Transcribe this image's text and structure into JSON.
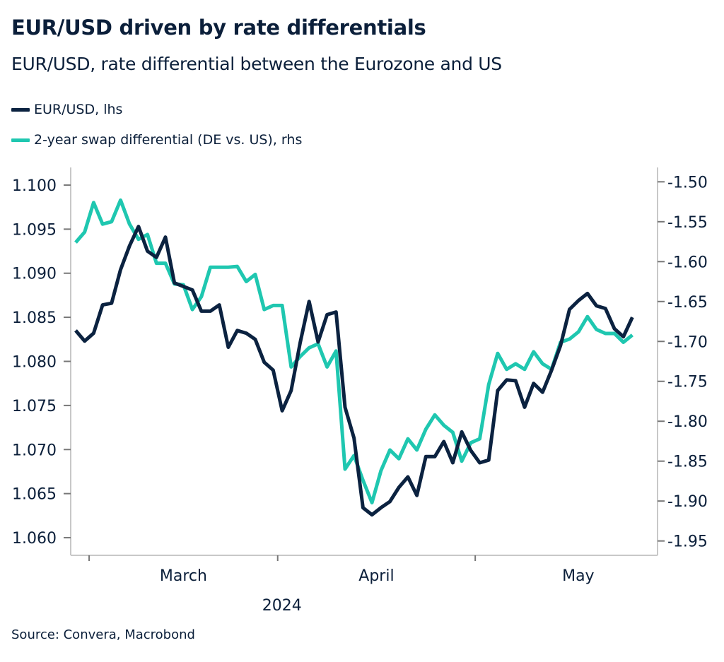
{
  "title": "EUR/USD driven by rate differentials",
  "subtitle": "EUR/USD, rate differential between the Eurozone and US",
  "source": "Source: Convera, Macrobond",
  "colors": {
    "eurusd": "#0b2240",
    "swap": "#1fc7b0",
    "axis": "#c8c8c8"
  },
  "chart_data": {
    "type": "line",
    "legend_placement": "top-left",
    "grid": false,
    "x_tick_labels": [
      "March",
      "April",
      "May"
    ],
    "x_year_label": "2024",
    "left_axis": {
      "range": [
        1.058,
        1.102
      ],
      "ticks": [
        "1.060",
        "1.065",
        "1.070",
        "1.075",
        "1.080",
        "1.085",
        "1.090",
        "1.095",
        "1.100"
      ]
    },
    "right_axis": {
      "range": [
        -1.968,
        -1.482
      ],
      "ticks": [
        "-1.50",
        "-1.55",
        "-1.60",
        "-1.65",
        "-1.70",
        "-1.75",
        "-1.80",
        "-1.85",
        "-1.90",
        "-1.95"
      ]
    },
    "x": [
      "2024-02-28",
      "2024-02-29",
      "2024-03-01",
      "2024-03-04",
      "2024-03-05",
      "2024-03-06",
      "2024-03-07",
      "2024-03-08",
      "2024-03-11",
      "2024-03-12",
      "2024-03-13",
      "2024-03-14",
      "2024-03-15",
      "2024-03-18",
      "2024-03-19",
      "2024-03-20",
      "2024-03-21",
      "2024-03-22",
      "2024-03-25",
      "2024-03-26",
      "2024-03-27",
      "2024-03-28",
      "2024-03-29",
      "2024-04-01",
      "2024-04-02",
      "2024-04-03",
      "2024-04-04",
      "2024-04-05",
      "2024-04-08",
      "2024-04-09",
      "2024-04-10",
      "2024-04-11",
      "2024-04-12",
      "2024-04-15",
      "2024-04-16",
      "2024-04-17",
      "2024-04-18",
      "2024-04-19",
      "2024-04-22",
      "2024-04-23",
      "2024-04-24",
      "2024-04-25",
      "2024-04-26",
      "2024-04-29",
      "2024-04-30",
      "2024-05-01",
      "2024-05-02",
      "2024-05-03",
      "2024-05-06",
      "2024-05-07",
      "2024-05-08",
      "2024-05-09",
      "2024-05-10",
      "2024-05-13",
      "2024-05-14",
      "2024-05-15",
      "2024-05-16",
      "2024-05-17",
      "2024-05-20",
      "2024-05-21",
      "2024-05-22",
      "2024-05-23",
      "2024-05-24"
    ],
    "series": [
      {
        "name": "EUR/USD, lhs",
        "axis": "left",
        "color": "#0b2240",
        "values": [
          1.0835,
          1.0823,
          1.0832,
          1.0864,
          1.0866,
          1.0904,
          1.0931,
          1.0953,
          1.0925,
          1.0918,
          1.0941,
          1.0889,
          1.0885,
          1.0881,
          1.0857,
          1.0857,
          1.0864,
          1.0816,
          1.0835,
          1.0832,
          1.0825,
          1.0799,
          1.079,
          1.0744,
          1.0767,
          1.0821,
          1.0868,
          1.0822,
          1.0853,
          1.0856,
          1.0748,
          1.0713,
          1.0634,
          1.0626,
          1.0634,
          1.0641,
          1.0657,
          1.0669,
          1.0648,
          1.0692,
          1.0692,
          1.0709,
          1.0685,
          1.072,
          1.0699,
          1.0685,
          1.0688,
          1.0767,
          1.0779,
          1.0778,
          1.0748,
          1.0775,
          1.0765,
          1.079,
          1.0818,
          1.0859,
          1.0869,
          1.0877,
          1.0863,
          1.086,
          1.0837,
          1.0828,
          1.085
        ]
      },
      {
        "name": "2-year swap differential (DE vs. US), rhs",
        "axis": "right",
        "color": "#1fc7b0",
        "values": [
          -1.576,
          -1.563,
          -1.526,
          -1.553,
          -1.55,
          -1.523,
          -1.553,
          -1.572,
          -1.566,
          -1.602,
          -1.602,
          -1.628,
          -1.629,
          -1.66,
          -1.644,
          -1.607,
          -1.607,
          -1.607,
          -1.606,
          -1.625,
          -1.616,
          -1.66,
          -1.655,
          -1.655,
          -1.732,
          -1.719,
          -1.708,
          -1.703,
          -1.732,
          -1.712,
          -1.86,
          -1.843,
          -1.874,
          -1.902,
          -1.862,
          -1.836,
          -1.847,
          -1.822,
          -1.836,
          -1.81,
          -1.792,
          -1.805,
          -1.814,
          -1.85,
          -1.827,
          -1.822,
          -1.754,
          -1.715,
          -1.735,
          -1.728,
          -1.735,
          -1.713,
          -1.728,
          -1.735,
          -1.701,
          -1.697,
          -1.688,
          -1.669,
          -1.685,
          -1.69,
          -1.69,
          -1.701,
          -1.692
        ]
      }
    ]
  }
}
